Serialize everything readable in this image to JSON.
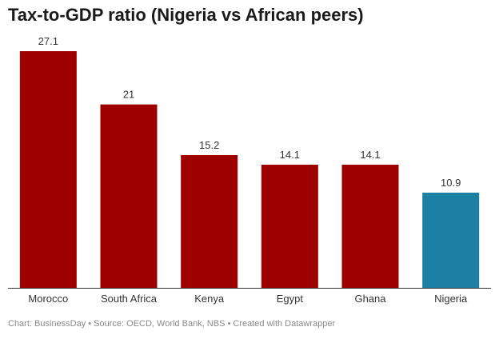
{
  "chart_data": {
    "type": "bar",
    "title": "Tax-to-GDP ratio (Nigeria vs African peers)",
    "categories": [
      "Morocco",
      "South Africa",
      "Kenya",
      "Egypt",
      "Ghana",
      "Nigeria"
    ],
    "values": [
      27.1,
      21,
      15.2,
      14.1,
      14.1,
      10.9
    ],
    "value_labels": [
      "27.1",
      "21",
      "15.2",
      "14.1",
      "14.1",
      "10.9"
    ],
    "bar_colors": [
      "#9e0000",
      "#9e0000",
      "#9e0000",
      "#9e0000",
      "#9e0000",
      "#1b80a3"
    ],
    "xlabel": "",
    "ylabel": "",
    "ylim": [
      0,
      27.1
    ],
    "grid": false,
    "legend": "none"
  },
  "footer": {
    "source_line": "Chart: BusinessDay • Source: OECD, World Bank, NBS • Created with Datawrapper"
  },
  "colors": {
    "highlight": "#1b80a3",
    "base": "#9e0000",
    "baseline": "#333333"
  }
}
